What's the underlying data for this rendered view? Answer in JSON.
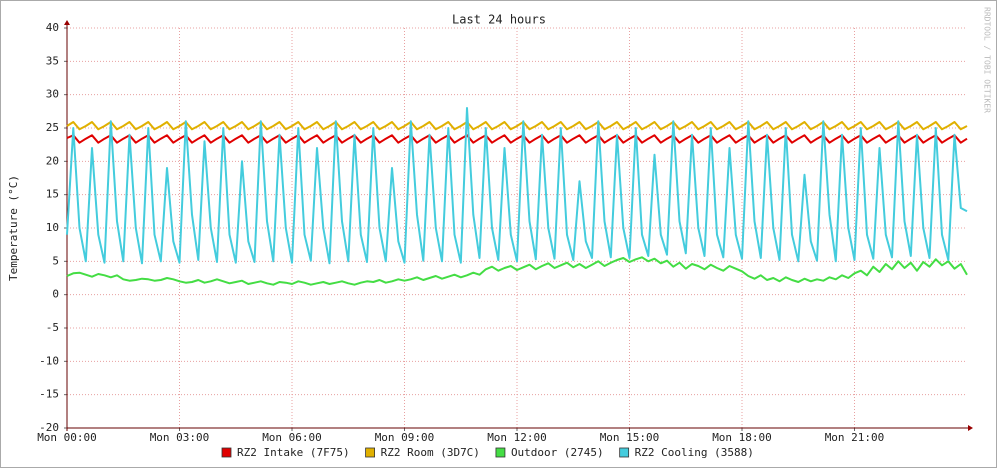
{
  "chart_data": {
    "type": "line",
    "title": "Last 24 hours",
    "y_label": "Temperature (°C)",
    "watermark": "RRDTOOL / TOBI OETIKER",
    "grid": true,
    "xlim": [
      0,
      1440
    ],
    "xticks": [
      {
        "value": 0,
        "label": "Mon 00:00"
      },
      {
        "value": 180,
        "label": "Mon 03:00"
      },
      {
        "value": 360,
        "label": "Mon 06:00"
      },
      {
        "value": 540,
        "label": "Mon 09:00"
      },
      {
        "value": 720,
        "label": "Mon 12:00"
      },
      {
        "value": 900,
        "label": "Mon 15:00"
      },
      {
        "value": 1080,
        "label": "Mon 18:00"
      },
      {
        "value": 1260,
        "label": "Mon 21:00"
      }
    ],
    "ylim": [
      -20,
      40
    ],
    "yticks": [
      -20,
      -15,
      -10,
      -5,
      0,
      5,
      10,
      15,
      20,
      25,
      30,
      35,
      40
    ],
    "x": [
      0,
      10,
      20,
      30,
      40,
      50,
      60,
      70,
      80,
      90,
      100,
      110,
      120,
      130,
      140,
      150,
      160,
      170,
      180,
      190,
      200,
      210,
      220,
      230,
      240,
      250,
      260,
      270,
      280,
      290,
      300,
      310,
      320,
      330,
      340,
      350,
      360,
      370,
      380,
      390,
      400,
      410,
      420,
      430,
      440,
      450,
      460,
      470,
      480,
      490,
      500,
      510,
      520,
      530,
      540,
      550,
      560,
      570,
      580,
      590,
      600,
      610,
      620,
      630,
      640,
      650,
      660,
      670,
      680,
      690,
      700,
      710,
      720,
      730,
      740,
      750,
      760,
      770,
      780,
      790,
      800,
      810,
      820,
      830,
      840,
      850,
      860,
      870,
      880,
      890,
      900,
      910,
      920,
      930,
      940,
      950,
      960,
      970,
      980,
      990,
      1000,
      1010,
      1020,
      1030,
      1040,
      1050,
      1060,
      1070,
      1080,
      1090,
      1100,
      1110,
      1120,
      1130,
      1140,
      1150,
      1160,
      1170,
      1180,
      1190,
      1200,
      1210,
      1220,
      1230,
      1240,
      1250,
      1260,
      1270,
      1280,
      1290,
      1300,
      1310,
      1320,
      1330,
      1340,
      1350,
      1360,
      1370,
      1380,
      1390,
      1400,
      1410,
      1420,
      1430,
      1440
    ],
    "series": [
      {
        "name": "RZ2 Intake (7F75)",
        "color": "#e00000",
        "values": [
          23.5,
          23.9,
          22.8,
          23.4,
          23.9,
          22.8,
          23.4,
          23.9,
          22.8,
          23.4,
          23.9,
          22.8,
          23.4,
          23.9,
          22.8,
          23.4,
          23.9,
          22.8,
          23.4,
          23.9,
          22.8,
          23.4,
          23.9,
          22.8,
          23.4,
          23.9,
          22.8,
          23.4,
          23.9,
          22.8,
          23.4,
          23.9,
          22.8,
          23.4,
          23.9,
          22.8,
          23.4,
          23.9,
          22.8,
          23.4,
          23.9,
          22.8,
          23.4,
          23.9,
          22.8,
          23.4,
          23.9,
          22.8,
          23.4,
          23.9,
          22.8,
          23.4,
          23.9,
          22.8,
          23.4,
          23.9,
          22.8,
          23.4,
          23.9,
          22.8,
          23.4,
          23.9,
          22.8,
          23.4,
          23.9,
          22.8,
          23.4,
          23.9,
          22.8,
          23.4,
          23.9,
          22.8,
          23.4,
          23.9,
          22.8,
          23.4,
          23.9,
          22.8,
          23.4,
          23.9,
          22.8,
          23.4,
          23.9,
          22.8,
          23.4,
          23.9,
          22.8,
          23.4,
          23.9,
          22.8,
          23.4,
          23.9,
          22.8,
          23.4,
          23.9,
          22.8,
          23.4,
          23.9,
          22.8,
          23.4,
          23.9,
          22.8,
          23.4,
          23.9,
          22.8,
          23.4,
          23.9,
          22.8,
          23.4,
          23.9,
          22.8,
          23.4,
          23.9,
          22.8,
          23.4,
          23.9,
          22.8,
          23.4,
          23.9,
          22.8,
          23.4,
          23.9,
          22.8,
          23.4,
          23.9,
          22.8,
          23.4,
          23.9,
          22.8,
          23.4,
          23.9,
          22.8,
          23.4,
          23.9,
          22.8,
          23.4,
          23.9,
          22.8,
          23.4,
          23.9,
          22.8,
          23.4,
          23.9,
          22.8,
          23.4
        ]
      },
      {
        "name": "RZ2 Room (3D7C)",
        "color": "#e0b000",
        "values": [
          25.3,
          25.9,
          24.8,
          25.3,
          25.9,
          24.8,
          25.3,
          25.9,
          24.8,
          25.3,
          25.9,
          24.8,
          25.3,
          25.9,
          24.8,
          25.3,
          25.9,
          24.8,
          25.3,
          25.9,
          24.8,
          25.3,
          25.9,
          24.8,
          25.3,
          25.9,
          24.8,
          25.3,
          25.9,
          24.8,
          25.3,
          25.9,
          24.8,
          25.3,
          25.9,
          24.8,
          25.3,
          25.9,
          24.8,
          25.3,
          25.9,
          24.8,
          25.3,
          25.9,
          24.8,
          25.3,
          25.9,
          24.8,
          25.3,
          25.9,
          24.8,
          25.3,
          25.9,
          24.8,
          25.3,
          25.9,
          24.8,
          25.3,
          25.9,
          24.8,
          25.3,
          25.9,
          24.8,
          25.3,
          25.9,
          24.8,
          25.3,
          25.9,
          24.8,
          25.3,
          25.9,
          24.8,
          25.3,
          25.9,
          24.8,
          25.3,
          25.9,
          24.8,
          25.3,
          25.9,
          24.8,
          25.3,
          25.9,
          24.8,
          25.3,
          25.9,
          24.8,
          25.3,
          25.9,
          24.8,
          25.3,
          25.9,
          24.8,
          25.3,
          25.9,
          24.8,
          25.3,
          25.9,
          24.8,
          25.3,
          25.9,
          24.8,
          25.3,
          25.9,
          24.8,
          25.3,
          25.9,
          24.8,
          25.3,
          25.9,
          24.8,
          25.3,
          25.9,
          24.8,
          25.3,
          25.9,
          24.8,
          25.3,
          25.9,
          24.8,
          25.3,
          25.9,
          24.8,
          25.3,
          25.9,
          24.8,
          25.3,
          25.9,
          24.8,
          25.3,
          25.9,
          24.8,
          25.3,
          25.9,
          24.8,
          25.3,
          25.9,
          24.8,
          25.3,
          25.9,
          24.8,
          25.3,
          25.9,
          24.8,
          25.3
        ]
      },
      {
        "name": "Outdoor (2745)",
        "color": "#44dd44",
        "values": [
          2.8,
          3.2,
          3.3,
          3.0,
          2.7,
          3.1,
          2.9,
          2.6,
          2.9,
          2.3,
          2.1,
          2.2,
          2.4,
          2.3,
          2.1,
          2.2,
          2.5,
          2.3,
          2.0,
          1.8,
          1.9,
          2.2,
          1.8,
          2.0,
          2.3,
          2.0,
          1.7,
          1.9,
          2.1,
          1.6,
          1.8,
          2.0,
          1.7,
          1.5,
          1.9,
          1.8,
          1.6,
          2.0,
          1.8,
          1.5,
          1.7,
          1.9,
          1.6,
          1.8,
          2.0,
          1.7,
          1.5,
          1.8,
          2.0,
          1.9,
          2.2,
          1.8,
          2.0,
          2.3,
          2.1,
          2.3,
          2.6,
          2.2,
          2.5,
          2.8,
          2.4,
          2.7,
          3.0,
          2.6,
          2.9,
          3.3,
          3.0,
          3.8,
          4.2,
          3.6,
          4.0,
          4.3,
          3.7,
          4.1,
          4.5,
          3.8,
          4.3,
          4.7,
          4.0,
          4.4,
          4.8,
          4.1,
          4.6,
          4.0,
          4.5,
          5.0,
          4.3,
          4.8,
          5.2,
          5.5,
          4.9,
          5.3,
          5.6,
          5.0,
          5.4,
          4.7,
          5.1,
          4.2,
          4.8,
          3.9,
          4.6,
          4.3,
          3.8,
          4.5,
          4.0,
          3.6,
          4.3,
          3.9,
          3.5,
          2.8,
          2.4,
          2.9,
          2.2,
          2.5,
          2.0,
          2.6,
          2.2,
          1.9,
          2.4,
          2.0,
          2.3,
          2.1,
          2.6,
          2.3,
          2.9,
          2.5,
          3.2,
          3.6,
          2.9,
          4.2,
          3.4,
          4.6,
          3.8,
          5.0,
          4.0,
          4.8,
          3.6,
          4.9,
          4.2,
          5.3,
          4.4,
          5.0,
          3.9,
          4.6,
          3.0
        ]
      },
      {
        "name": "RZ2 Cooling (3588)",
        "color": "#44ccdd",
        "values": [
          9,
          25,
          10,
          5,
          22,
          9,
          4.8,
          26,
          11,
          5,
          24,
          10,
          4.7,
          25,
          9,
          5,
          19,
          8,
          4.8,
          26,
          12,
          5.2,
          23,
          10,
          4.9,
          25,
          9,
          4.8,
          20,
          8,
          4.9,
          26,
          11,
          5,
          24,
          10,
          4.8,
          25,
          9,
          5.1,
          22,
          10,
          4.7,
          26,
          11,
          5,
          24,
          9,
          4.9,
          25,
          10,
          5,
          19,
          8,
          4.8,
          26,
          12,
          5.1,
          24,
          10,
          5,
          25,
          9,
          4.8,
          28,
          12,
          5.5,
          25,
          10,
          5.2,
          22,
          9,
          5,
          26,
          11,
          5.3,
          24,
          10,
          5.4,
          25,
          9,
          5.2,
          17,
          8,
          5.5,
          26,
          11,
          5.6,
          24,
          10,
          5.5,
          25,
          9,
          5.8,
          21,
          9,
          6,
          26,
          11,
          6.2,
          24,
          10,
          5.8,
          25,
          9,
          5.6,
          22,
          9,
          5.4,
          26,
          11,
          5.5,
          24,
          10,
          5.2,
          25,
          9,
          5,
          18,
          8,
          5.1,
          26,
          12,
          5,
          24,
          10,
          5.2,
          25,
          9,
          5.4,
          22,
          9,
          5.6,
          26,
          11,
          5.8,
          24,
          10,
          5.5,
          25,
          9,
          5.2,
          24,
          13,
          12.5
        ]
      }
    ]
  }
}
